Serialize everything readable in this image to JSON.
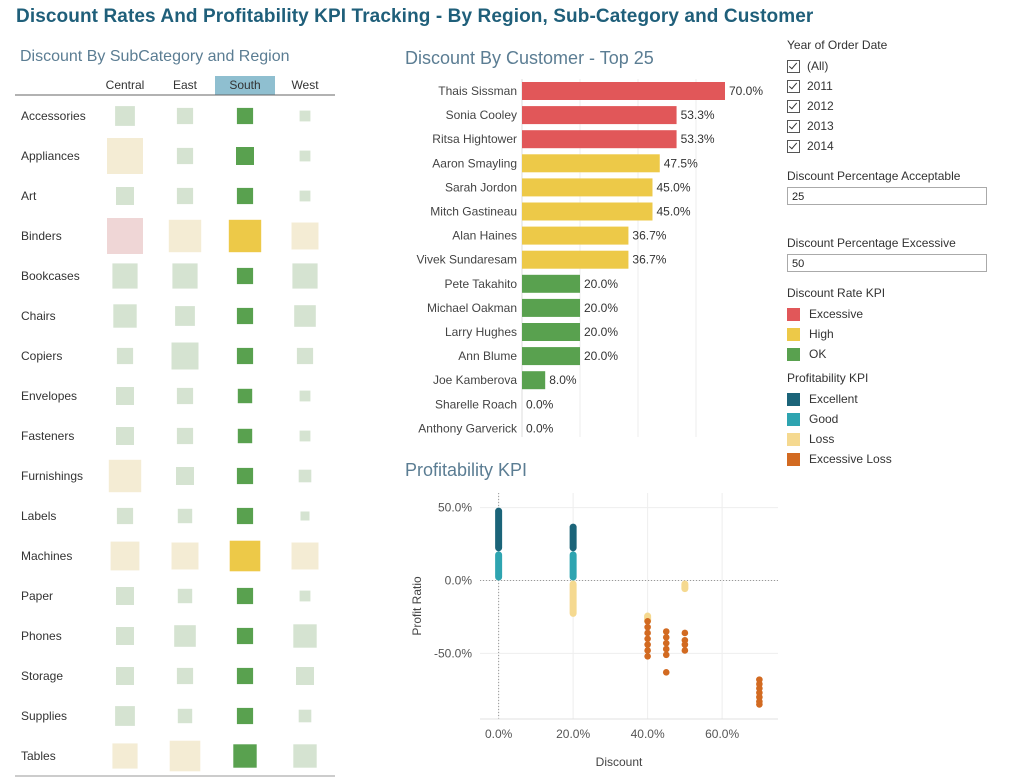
{
  "title": "Discount Rates And Profitability KPI Tracking - By Region, Sub-Category and Customer",
  "colors": {
    "excessive": "#e15759",
    "high": "#edc948",
    "ok": "#59a14f",
    "excellent": "#1b6479",
    "good": "#2ea4b0",
    "loss": "#f5d990",
    "excessive_loss": "#d26a21",
    "faded_green": "#d5e3d1",
    "faded_yellow": "#f4ecd4",
    "faded_red": "#efd6d6",
    "south_header": "#8fbfd0"
  },
  "matrix": {
    "title": "Discount By SubCategory and Region",
    "regions": [
      "Central",
      "East",
      "South",
      "West"
    ],
    "highlighted_region": "South",
    "rows": [
      {
        "label": "Accessories",
        "cells": [
          [
            "faded_green",
            0.55
          ],
          [
            "faded_green",
            0.45
          ],
          [
            "ok",
            0.45
          ],
          [
            "faded_green",
            0.3
          ]
        ]
      },
      {
        "label": "Appliances",
        "cells": [
          [
            "faded_yellow",
            1.0
          ],
          [
            "faded_green",
            0.45
          ],
          [
            "ok",
            0.5
          ],
          [
            "faded_green",
            0.3
          ]
        ]
      },
      {
        "label": "Art",
        "cells": [
          [
            "faded_green",
            0.5
          ],
          [
            "faded_green",
            0.45
          ],
          [
            "ok",
            0.45
          ],
          [
            "faded_green",
            0.3
          ]
        ]
      },
      {
        "label": "Binders",
        "cells": [
          [
            "faded_red",
            1.0
          ],
          [
            "faded_yellow",
            0.9
          ],
          [
            "high",
            0.9
          ],
          [
            "faded_yellow",
            0.75
          ]
        ]
      },
      {
        "label": "Bookcases",
        "cells": [
          [
            "faded_green",
            0.7
          ],
          [
            "faded_green",
            0.7
          ],
          [
            "ok",
            0.45
          ],
          [
            "faded_green",
            0.7
          ]
        ]
      },
      {
        "label": "Chairs",
        "cells": [
          [
            "faded_green",
            0.65
          ],
          [
            "faded_green",
            0.55
          ],
          [
            "ok",
            0.45
          ],
          [
            "faded_green",
            0.6
          ]
        ]
      },
      {
        "label": "Copiers",
        "cells": [
          [
            "faded_green",
            0.45
          ],
          [
            "faded_green",
            0.75
          ],
          [
            "ok",
            0.45
          ],
          [
            "faded_green",
            0.45
          ]
        ]
      },
      {
        "label": "Envelopes",
        "cells": [
          [
            "faded_green",
            0.5
          ],
          [
            "faded_green",
            0.45
          ],
          [
            "ok",
            0.4
          ],
          [
            "faded_green",
            0.3
          ]
        ]
      },
      {
        "label": "Fasteners",
        "cells": [
          [
            "faded_green",
            0.5
          ],
          [
            "faded_green",
            0.45
          ],
          [
            "ok",
            0.4
          ],
          [
            "faded_green",
            0.3
          ]
        ]
      },
      {
        "label": "Furnishings",
        "cells": [
          [
            "faded_yellow",
            0.9
          ],
          [
            "faded_green",
            0.5
          ],
          [
            "ok",
            0.45
          ],
          [
            "faded_green",
            0.35
          ]
        ]
      },
      {
        "label": "Labels",
        "cells": [
          [
            "faded_green",
            0.45
          ],
          [
            "faded_green",
            0.4
          ],
          [
            "ok",
            0.45
          ],
          [
            "faded_green",
            0.25
          ]
        ]
      },
      {
        "label": "Machines",
        "cells": [
          [
            "faded_yellow",
            0.8
          ],
          [
            "faded_yellow",
            0.75
          ],
          [
            "high",
            0.85
          ],
          [
            "faded_yellow",
            0.75
          ]
        ]
      },
      {
        "label": "Paper",
        "cells": [
          [
            "faded_green",
            0.5
          ],
          [
            "faded_green",
            0.4
          ],
          [
            "ok",
            0.45
          ],
          [
            "faded_green",
            0.3
          ]
        ]
      },
      {
        "label": "Phones",
        "cells": [
          [
            "faded_green",
            0.5
          ],
          [
            "faded_green",
            0.6
          ],
          [
            "ok",
            0.45
          ],
          [
            "faded_green",
            0.65
          ]
        ]
      },
      {
        "label": "Storage",
        "cells": [
          [
            "faded_green",
            0.5
          ],
          [
            "faded_green",
            0.45
          ],
          [
            "ok",
            0.45
          ],
          [
            "faded_green",
            0.5
          ]
        ]
      },
      {
        "label": "Supplies",
        "cells": [
          [
            "faded_green",
            0.55
          ],
          [
            "faded_green",
            0.4
          ],
          [
            "ok",
            0.45
          ],
          [
            "faded_green",
            0.35
          ]
        ]
      },
      {
        "label": "Tables",
        "cells": [
          [
            "faded_yellow",
            0.7
          ],
          [
            "faded_yellow",
            0.85
          ],
          [
            "ok",
            0.65
          ],
          [
            "faded_green",
            0.65
          ]
        ]
      }
    ]
  },
  "chart_data": [
    {
      "type": "bar",
      "orientation": "horizontal",
      "title": "Discount By Customer - Top 25",
      "xlim": [
        0,
        0.7
      ],
      "categories": [
        "Thais Sissman",
        "Sonia Cooley",
        "Ritsa Hightower",
        "Aaron Smayling",
        "Sarah Jordon",
        "Mitch Gastineau",
        "Alan Haines",
        "Vivek Sundaresam",
        "Pete Takahito",
        "Michael Oakman",
        "Larry Hughes",
        "Ann Blume",
        "Joe Kamberova",
        "Sharelle Roach",
        "Anthony Garverick"
      ],
      "values": [
        0.7,
        0.533,
        0.533,
        0.475,
        0.45,
        0.45,
        0.367,
        0.367,
        0.2,
        0.2,
        0.2,
        0.2,
        0.08,
        0.0,
        0.0
      ],
      "value_labels": [
        "70.0%",
        "53.3%",
        "53.3%",
        "47.5%",
        "45.0%",
        "45.0%",
        "36.7%",
        "36.7%",
        "20.0%",
        "20.0%",
        "20.0%",
        "20.0%",
        "8.0%",
        "0.0%",
        "0.0%"
      ],
      "kpi": [
        "Excessive",
        "Excessive",
        "Excessive",
        "High",
        "High",
        "High",
        "High",
        "High",
        "OK",
        "OK",
        "OK",
        "OK",
        "OK",
        "OK",
        "OK"
      ]
    },
    {
      "type": "scatter",
      "title": "Profitability KPI",
      "xlabel": "Discount",
      "ylabel": "Profit Ratio",
      "xlim": [
        -0.05,
        0.75
      ],
      "ylim": [
        -0.95,
        0.6
      ],
      "x_ticks": [
        0.0,
        0.2,
        0.4,
        0.6
      ],
      "x_tick_labels": [
        "0.0%",
        "20.0%",
        "40.0%",
        "60.0%"
      ],
      "y_ticks": [
        0.5,
        0.0,
        -0.5
      ],
      "y_tick_labels": [
        "50.0%",
        "0.0%",
        "-50.0%"
      ],
      "strips": [
        {
          "x": 0.0,
          "y0": 0.0,
          "y1": 0.2,
          "kpi": "Good"
        },
        {
          "x": 0.0,
          "y0": 0.2,
          "y1": 0.5,
          "kpi": "Excellent"
        },
        {
          "x": 0.2,
          "y0": 0.0,
          "y1": 0.2,
          "kpi": "Good"
        },
        {
          "x": 0.2,
          "y0": 0.2,
          "y1": 0.39,
          "kpi": "Excellent"
        },
        {
          "x": 0.2,
          "y0": -0.25,
          "y1": 0.0,
          "kpi": "Loss"
        },
        {
          "x": 0.5,
          "y0": -0.08,
          "y1": 0.0,
          "kpi": "Loss"
        },
        {
          "x": 0.4,
          "y0": -0.3,
          "y1": -0.22,
          "kpi": "Loss"
        }
      ],
      "points": [
        {
          "x": 0.4,
          "y": -0.28,
          "kpi": "Excessive Loss"
        },
        {
          "x": 0.4,
          "y": -0.32,
          "kpi": "Excessive Loss"
        },
        {
          "x": 0.4,
          "y": -0.36,
          "kpi": "Excessive Loss"
        },
        {
          "x": 0.4,
          "y": -0.4,
          "kpi": "Excessive Loss"
        },
        {
          "x": 0.4,
          "y": -0.44,
          "kpi": "Excessive Loss"
        },
        {
          "x": 0.4,
          "y": -0.48,
          "kpi": "Excessive Loss"
        },
        {
          "x": 0.4,
          "y": -0.52,
          "kpi": "Excessive Loss"
        },
        {
          "x": 0.45,
          "y": -0.35,
          "kpi": "Excessive Loss"
        },
        {
          "x": 0.45,
          "y": -0.39,
          "kpi": "Excessive Loss"
        },
        {
          "x": 0.45,
          "y": -0.43,
          "kpi": "Excessive Loss"
        },
        {
          "x": 0.45,
          "y": -0.47,
          "kpi": "Excessive Loss"
        },
        {
          "x": 0.45,
          "y": -0.51,
          "kpi": "Excessive Loss"
        },
        {
          "x": 0.45,
          "y": -0.63,
          "kpi": "Excessive Loss"
        },
        {
          "x": 0.5,
          "y": -0.36,
          "kpi": "Excessive Loss"
        },
        {
          "x": 0.5,
          "y": -0.41,
          "kpi": "Excessive Loss"
        },
        {
          "x": 0.5,
          "y": -0.44,
          "kpi": "Excessive Loss"
        },
        {
          "x": 0.5,
          "y": -0.48,
          "kpi": "Excessive Loss"
        },
        {
          "x": 0.7,
          "y": -0.68,
          "kpi": "Excessive Loss"
        },
        {
          "x": 0.7,
          "y": -0.71,
          "kpi": "Excessive Loss"
        },
        {
          "x": 0.7,
          "y": -0.74,
          "kpi": "Excessive Loss"
        },
        {
          "x": 0.7,
          "y": -0.77,
          "kpi": "Excessive Loss"
        },
        {
          "x": 0.7,
          "y": -0.8,
          "kpi": "Excessive Loss"
        },
        {
          "x": 0.7,
          "y": -0.83,
          "kpi": "Excessive Loss"
        },
        {
          "x": 0.7,
          "y": -0.85,
          "kpi": "Excessive Loss"
        }
      ]
    }
  ],
  "filters": {
    "year_label": "Year of Order Date",
    "years": [
      "(All)",
      "2011",
      "2012",
      "2013",
      "2014"
    ],
    "acceptable_label": "Discount Percentage Acceptable",
    "acceptable_value": "25",
    "excessive_label": "Discount Percentage Excessive",
    "excessive_value": "50"
  },
  "legends": {
    "discount_title": "Discount Rate KPI",
    "discount_items": [
      {
        "label": "Excessive",
        "color_key": "excessive"
      },
      {
        "label": "High",
        "color_key": "high"
      },
      {
        "label": "OK",
        "color_key": "ok"
      }
    ],
    "profit_title": "Profitability KPI",
    "profit_items": [
      {
        "label": "Excellent",
        "color_key": "excellent"
      },
      {
        "label": "Good",
        "color_key": "good"
      },
      {
        "label": "Loss",
        "color_key": "loss"
      },
      {
        "label": "Excessive Loss",
        "color_key": "excessive_loss"
      }
    ]
  }
}
